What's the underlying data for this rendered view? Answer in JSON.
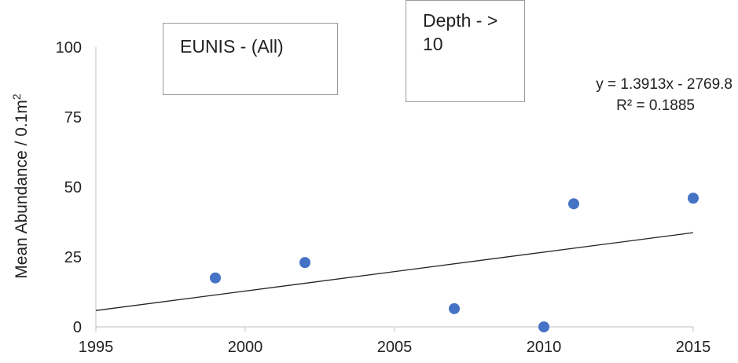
{
  "chart_data": {
    "type": "scatter",
    "ylabel": "Mean Abundance / 0.1m",
    "ylabel_superscript": "2",
    "xlim": [
      1995,
      2015
    ],
    "ylim": [
      0,
      100
    ],
    "x_ticks": [
      "1995",
      "2000",
      "2005",
      "2010",
      "2015"
    ],
    "y_ticks": [
      "0",
      "25",
      "50",
      "75",
      "100"
    ],
    "grid": false,
    "marker_color": "#4472C4",
    "trendline_color": "#222222",
    "points": [
      {
        "x": 1999,
        "y": 17.5
      },
      {
        "x": 2002,
        "y": 23
      },
      {
        "x": 2007,
        "y": 6.5
      },
      {
        "x": 2010,
        "y": 0
      },
      {
        "x": 2011,
        "y": 44
      },
      {
        "x": 2015,
        "y": 46
      }
    ],
    "trendline": {
      "slope": 1.3913,
      "intercept": -2769.8,
      "equation": "y = 1.3913x - 2769.8",
      "r_squared": "R² = 0.1885"
    }
  },
  "filters": {
    "eunis": "EUNIS - (All)",
    "depth_line1": "Depth - >",
    "depth_line2": "10"
  }
}
